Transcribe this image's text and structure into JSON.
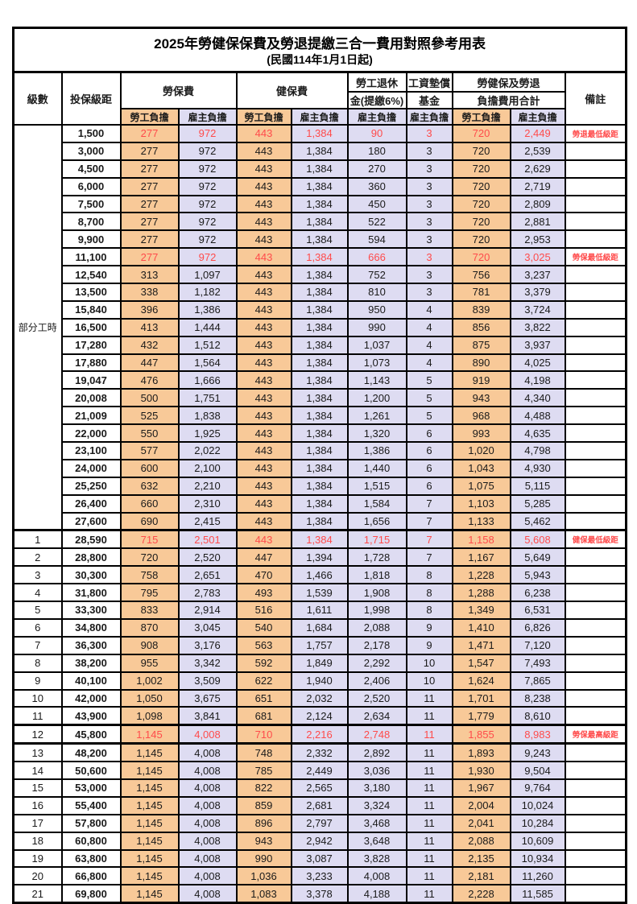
{
  "title": "2025年勞健保保費及勞退提繳三合一費用對照參考用表",
  "subtitle": "(民國114年1月1日起)",
  "colors": {
    "employee_bg": "#F8C998",
    "employer_bg": "#DEDCF2",
    "highlight_red": "#FF4B4B"
  },
  "header": {
    "level": "級數",
    "bracket": "投保級距",
    "labor_ins": "勞保費",
    "health_ins": "健保費",
    "pension_line1": "勞工退休",
    "pension_line2": "金(提繳6%)",
    "wage_fund_line1": "工資墊償",
    "wage_fund_line2": "基金",
    "total_line1": "勞健保及勞退",
    "total_line2": "負擔費用合計",
    "note": "備註",
    "employee_share": "勞工負擔",
    "employer_share": "雇主負擔"
  },
  "part_time": {
    "label": "部分工時",
    "span": 23
  },
  "rows": [
    {
      "lv": "",
      "br": "1,500",
      "v": [
        "277",
        "972",
        "443",
        "1,384",
        "90",
        "3",
        "720",
        "2,449"
      ],
      "note": "勞退最低級距",
      "red": true
    },
    {
      "lv": "",
      "br": "3,000",
      "v": [
        "277",
        "972",
        "443",
        "1,384",
        "180",
        "3",
        "720",
        "2,539"
      ]
    },
    {
      "lv": "",
      "br": "4,500",
      "v": [
        "277",
        "972",
        "443",
        "1,384",
        "270",
        "3",
        "720",
        "2,629"
      ]
    },
    {
      "lv": "",
      "br": "6,000",
      "v": [
        "277",
        "972",
        "443",
        "1,384",
        "360",
        "3",
        "720",
        "2,719"
      ]
    },
    {
      "lv": "",
      "br": "7,500",
      "v": [
        "277",
        "972",
        "443",
        "1,384",
        "450",
        "3",
        "720",
        "2,809"
      ]
    },
    {
      "lv": "",
      "br": "8,700",
      "v": [
        "277",
        "972",
        "443",
        "1,384",
        "522",
        "3",
        "720",
        "2,881"
      ]
    },
    {
      "lv": "",
      "br": "9,900",
      "v": [
        "277",
        "972",
        "443",
        "1,384",
        "594",
        "3",
        "720",
        "2,953"
      ]
    },
    {
      "lv": "",
      "br": "11,100",
      "v": [
        "277",
        "972",
        "443",
        "1,384",
        "666",
        "3",
        "720",
        "3,025"
      ],
      "note": "勞保最低級距",
      "red": true
    },
    {
      "lv": "",
      "br": "12,540",
      "v": [
        "313",
        "1,097",
        "443",
        "1,384",
        "752",
        "3",
        "756",
        "3,237"
      ]
    },
    {
      "lv": "",
      "br": "13,500",
      "v": [
        "338",
        "1,182",
        "443",
        "1,384",
        "810",
        "3",
        "781",
        "3,379"
      ]
    },
    {
      "lv": "",
      "br": "15,840",
      "v": [
        "396",
        "1,386",
        "443",
        "1,384",
        "950",
        "4",
        "839",
        "3,724"
      ]
    },
    {
      "lv": "",
      "br": "16,500",
      "v": [
        "413",
        "1,444",
        "443",
        "1,384",
        "990",
        "4",
        "856",
        "3,822"
      ]
    },
    {
      "lv": "",
      "br": "17,280",
      "v": [
        "432",
        "1,512",
        "443",
        "1,384",
        "1,037",
        "4",
        "875",
        "3,937"
      ]
    },
    {
      "lv": "",
      "br": "17,880",
      "v": [
        "447",
        "1,564",
        "443",
        "1,384",
        "1,073",
        "4",
        "890",
        "4,025"
      ]
    },
    {
      "lv": "",
      "br": "19,047",
      "v": [
        "476",
        "1,666",
        "443",
        "1,384",
        "1,143",
        "5",
        "919",
        "4,198"
      ]
    },
    {
      "lv": "",
      "br": "20,008",
      "v": [
        "500",
        "1,751",
        "443",
        "1,384",
        "1,200",
        "5",
        "943",
        "4,340"
      ]
    },
    {
      "lv": "",
      "br": "21,009",
      "v": [
        "525",
        "1,838",
        "443",
        "1,384",
        "1,261",
        "5",
        "968",
        "4,488"
      ]
    },
    {
      "lv": "",
      "br": "22,000",
      "v": [
        "550",
        "1,925",
        "443",
        "1,384",
        "1,320",
        "6",
        "993",
        "4,635"
      ]
    },
    {
      "lv": "",
      "br": "23,100",
      "v": [
        "577",
        "2,022",
        "443",
        "1,384",
        "1,386",
        "6",
        "1,020",
        "4,798"
      ]
    },
    {
      "lv": "",
      "br": "24,000",
      "v": [
        "600",
        "2,100",
        "443",
        "1,384",
        "1,440",
        "6",
        "1,043",
        "4,930"
      ]
    },
    {
      "lv": "",
      "br": "25,250",
      "v": [
        "632",
        "2,210",
        "443",
        "1,384",
        "1,515",
        "6",
        "1,075",
        "5,115"
      ]
    },
    {
      "lv": "",
      "br": "26,400",
      "v": [
        "660",
        "2,310",
        "443",
        "1,384",
        "1,584",
        "7",
        "1,103",
        "5,285"
      ]
    },
    {
      "lv": "",
      "br": "27,600",
      "v": [
        "690",
        "2,415",
        "443",
        "1,384",
        "1,656",
        "7",
        "1,133",
        "5,462"
      ]
    },
    {
      "lv": "1",
      "br": "28,590",
      "v": [
        "715",
        "2,501",
        "443",
        "1,384",
        "1,715",
        "7",
        "1,158",
        "5,608"
      ],
      "note": "健保最低級距",
      "red": true
    },
    {
      "lv": "2",
      "br": "28,800",
      "v": [
        "720",
        "2,520",
        "447",
        "1,394",
        "1,728",
        "7",
        "1,167",
        "5,649"
      ]
    },
    {
      "lv": "3",
      "br": "30,300",
      "v": [
        "758",
        "2,651",
        "470",
        "1,466",
        "1,818",
        "8",
        "1,228",
        "5,943"
      ]
    },
    {
      "lv": "4",
      "br": "31,800",
      "v": [
        "795",
        "2,783",
        "493",
        "1,539",
        "1,908",
        "8",
        "1,288",
        "6,238"
      ]
    },
    {
      "lv": "5",
      "br": "33,300",
      "v": [
        "833",
        "2,914",
        "516",
        "1,611",
        "1,998",
        "8",
        "1,349",
        "6,531"
      ]
    },
    {
      "lv": "6",
      "br": "34,800",
      "v": [
        "870",
        "3,045",
        "540",
        "1,684",
        "2,088",
        "9",
        "1,410",
        "6,826"
      ]
    },
    {
      "lv": "7",
      "br": "36,300",
      "v": [
        "908",
        "3,176",
        "563",
        "1,757",
        "2,178",
        "9",
        "1,471",
        "7,120"
      ]
    },
    {
      "lv": "8",
      "br": "38,200",
      "v": [
        "955",
        "3,342",
        "592",
        "1,849",
        "2,292",
        "10",
        "1,547",
        "7,493"
      ]
    },
    {
      "lv": "9",
      "br": "40,100",
      "v": [
        "1,002",
        "3,509",
        "622",
        "1,940",
        "2,406",
        "10",
        "1,624",
        "7,865"
      ]
    },
    {
      "lv": "10",
      "br": "42,000",
      "v": [
        "1,050",
        "3,675",
        "651",
        "2,032",
        "2,520",
        "11",
        "1,701",
        "8,238"
      ]
    },
    {
      "lv": "11",
      "br": "43,900",
      "v": [
        "1,098",
        "3,841",
        "681",
        "2,124",
        "2,634",
        "11",
        "1,779",
        "8,610"
      ]
    },
    {
      "lv": "12",
      "br": "45,800",
      "v": [
        "1,145",
        "4,008",
        "710",
        "2,216",
        "2,748",
        "11",
        "1,855",
        "8,983"
      ],
      "note": "勞保最高級距",
      "red": true
    },
    {
      "lv": "13",
      "br": "48,200",
      "v": [
        "1,145",
        "4,008",
        "748",
        "2,332",
        "2,892",
        "11",
        "1,893",
        "9,243"
      ]
    },
    {
      "lv": "14",
      "br": "50,600",
      "v": [
        "1,145",
        "4,008",
        "785",
        "2,449",
        "3,036",
        "11",
        "1,930",
        "9,504"
      ]
    },
    {
      "lv": "15",
      "br": "53,000",
      "v": [
        "1,145",
        "4,008",
        "822",
        "2,565",
        "3,180",
        "11",
        "1,967",
        "9,764"
      ]
    },
    {
      "lv": "16",
      "br": "55,400",
      "v": [
        "1,145",
        "4,008",
        "859",
        "2,681",
        "3,324",
        "11",
        "2,004",
        "10,024"
      ]
    },
    {
      "lv": "17",
      "br": "57,800",
      "v": [
        "1,145",
        "4,008",
        "896",
        "2,797",
        "3,468",
        "11",
        "2,041",
        "10,284"
      ]
    },
    {
      "lv": "18",
      "br": "60,800",
      "v": [
        "1,145",
        "4,008",
        "943",
        "2,942",
        "3,648",
        "11",
        "2,088",
        "10,609"
      ]
    },
    {
      "lv": "19",
      "br": "63,800",
      "v": [
        "1,145",
        "4,008",
        "990",
        "3,087",
        "3,828",
        "11",
        "2,135",
        "10,934"
      ]
    },
    {
      "lv": "20",
      "br": "66,800",
      "v": [
        "1,145",
        "4,008",
        "1,036",
        "3,233",
        "4,008",
        "11",
        "2,181",
        "11,260"
      ]
    },
    {
      "lv": "21",
      "br": "69,800",
      "v": [
        "1,145",
        "4,008",
        "1,083",
        "3,378",
        "4,188",
        "11",
        "2,228",
        "11,585"
      ]
    }
  ]
}
